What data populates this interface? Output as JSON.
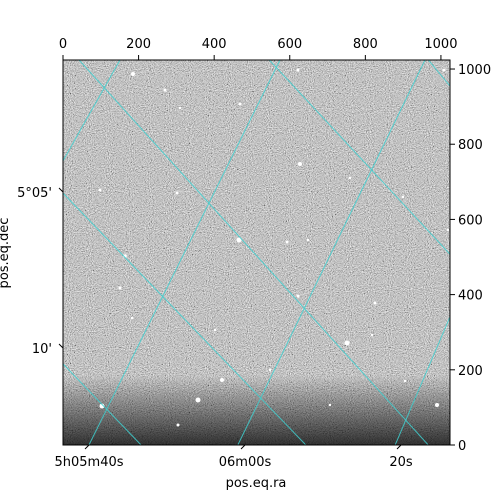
{
  "chart_data": {
    "type": "heatmap",
    "xlabel": "pos.eq.ra",
    "ylabel": "pos.eq.dec",
    "pixel_axes": {
      "x_ticks": [
        "0",
        "200",
        "400",
        "600",
        "800",
        "1000"
      ],
      "y_ticks": [
        "0",
        "200",
        "400",
        "600",
        "800",
        "1000"
      ],
      "xlim": [
        0,
        1024
      ],
      "ylim": [
        0,
        1024
      ]
    },
    "world_ticks": {
      "ra": [
        "5h05m40s",
        "06m00s",
        "20s"
      ],
      "dec": [
        "5°05'",
        "10'"
      ]
    },
    "grid": true,
    "colors": {
      "grid": "#3fd0d0",
      "background": "#5a5a5a",
      "frame": "#000000"
    }
  }
}
